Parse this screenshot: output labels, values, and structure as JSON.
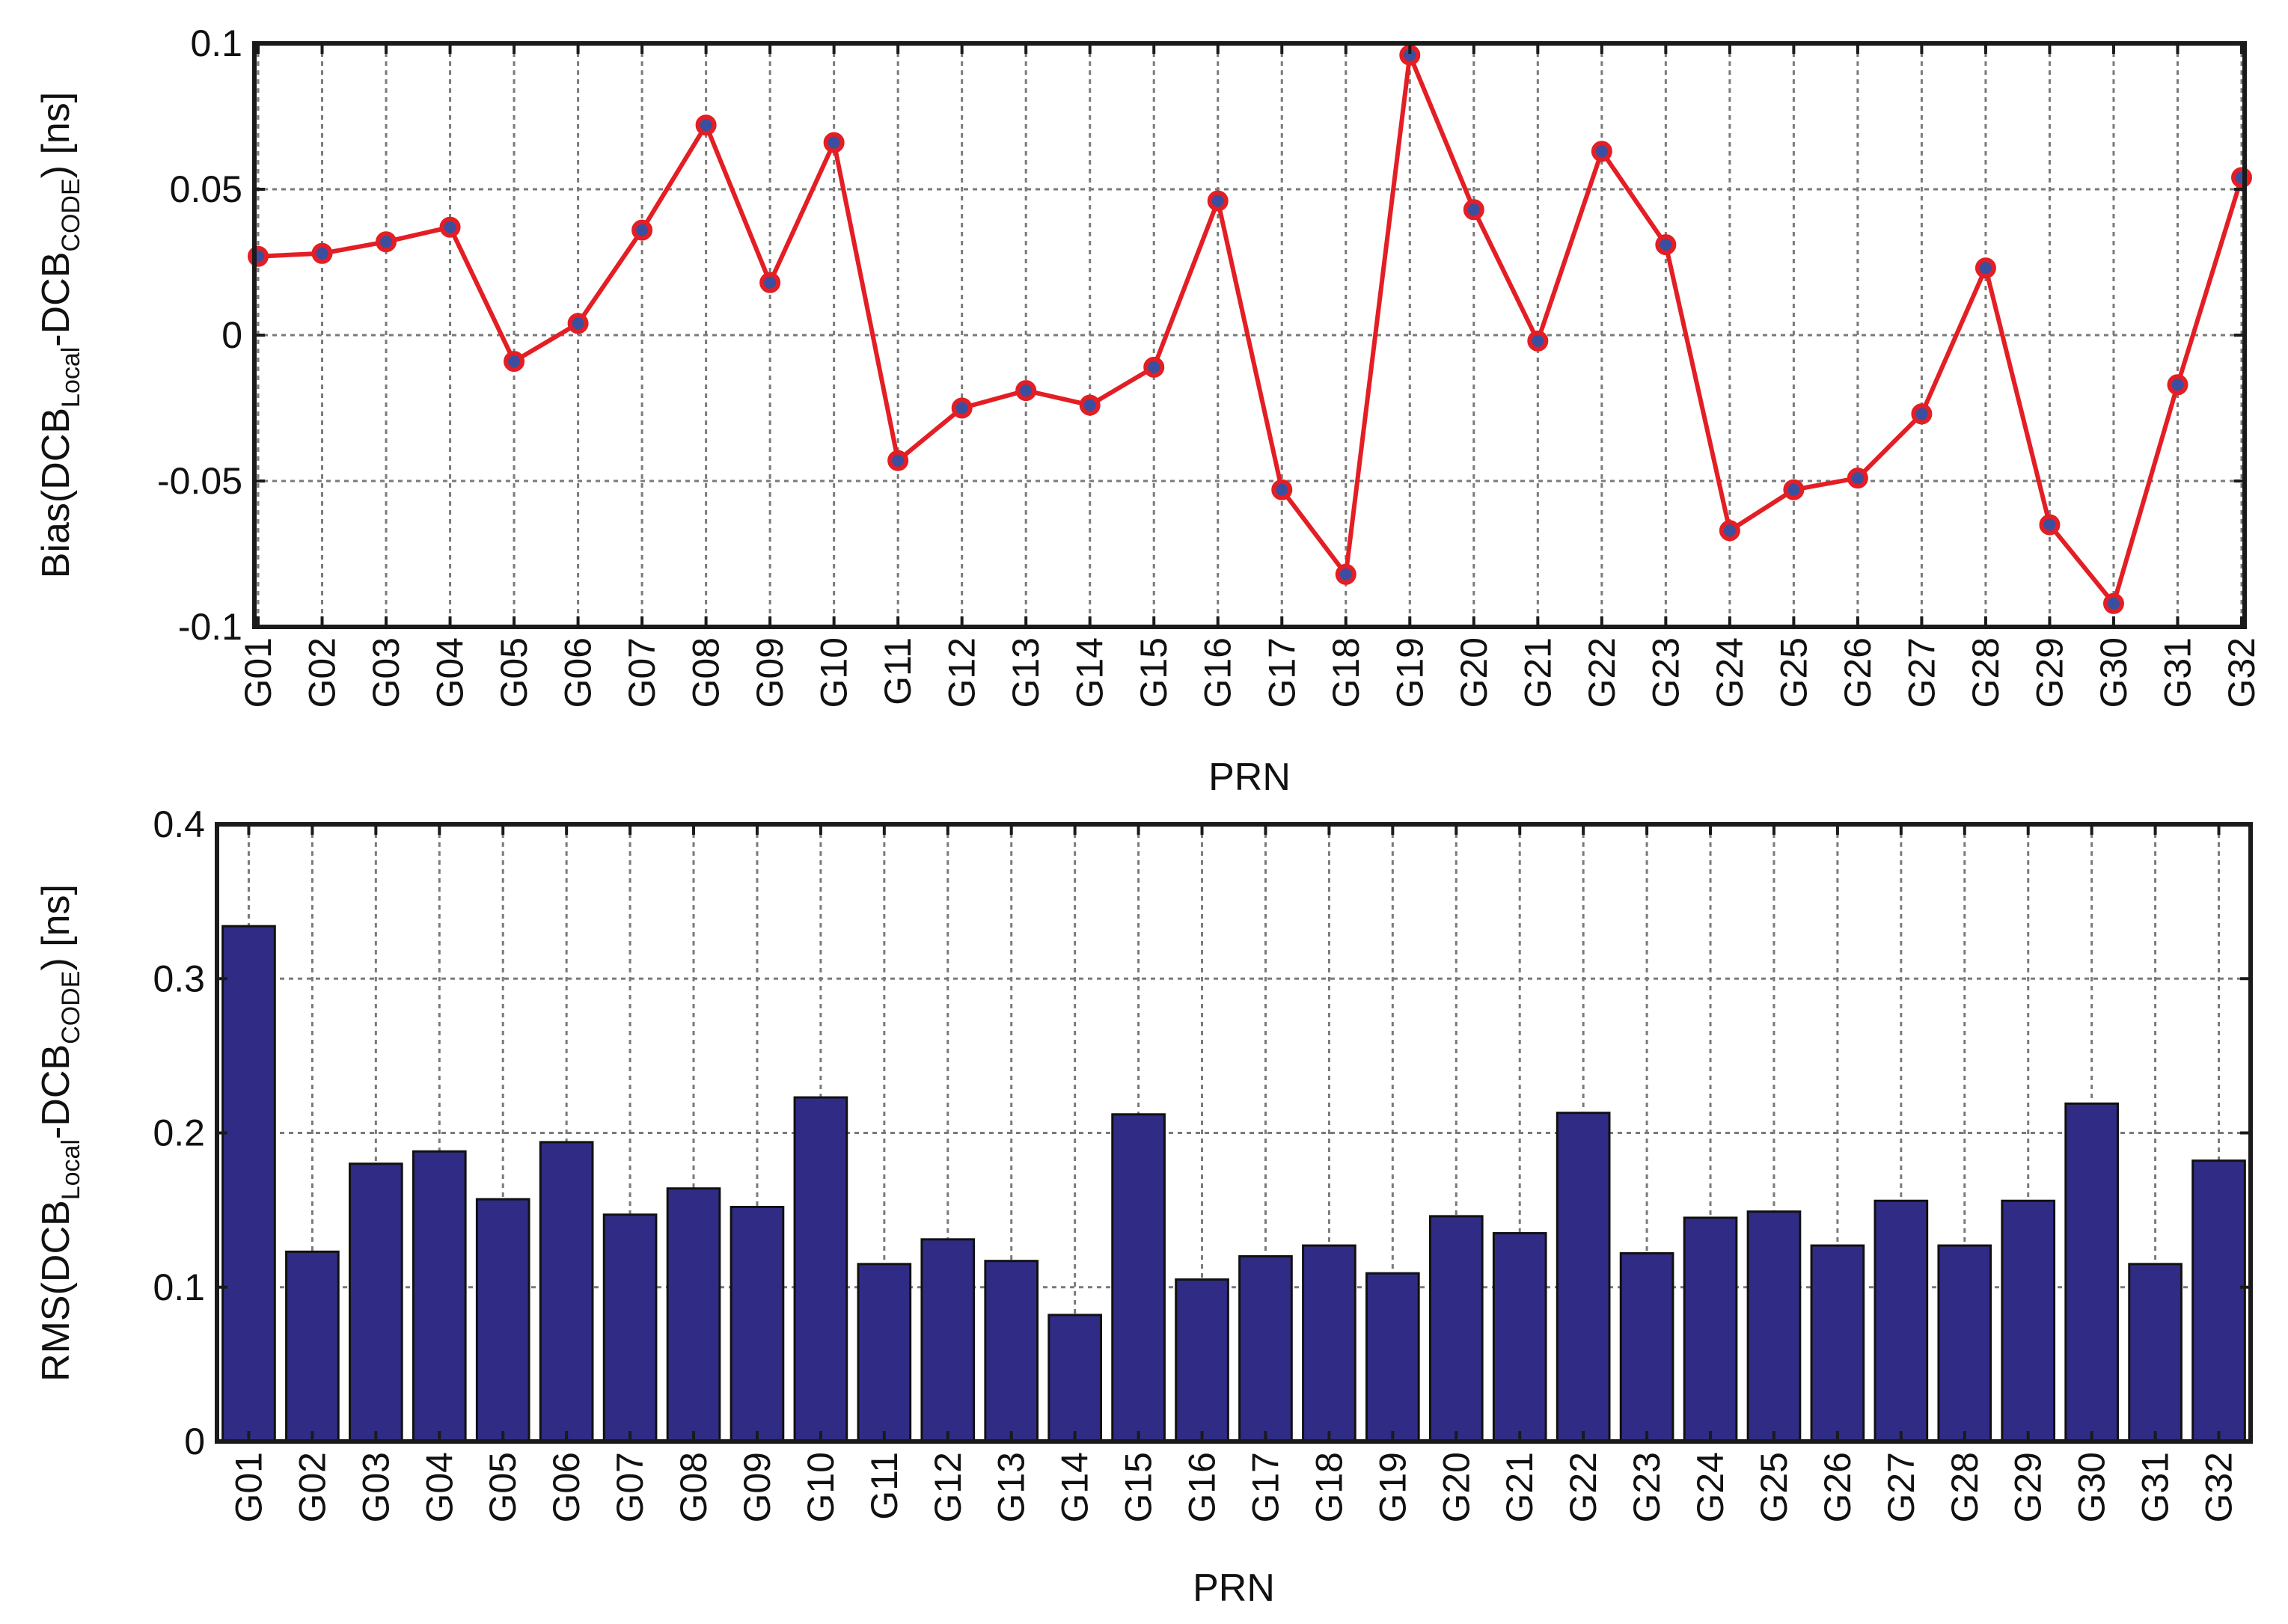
{
  "colors": {
    "line": "#e31e24",
    "marker_fill": "#3b4fa0",
    "bar": "#302c85",
    "bar_edge": "#111111",
    "grid": "#7a7a7a"
  },
  "chart_data": [
    {
      "type": "line",
      "xlabel": "PRN",
      "ylabel_parts": {
        "pre": "Bias(DCB",
        "sub1": "Local",
        "mid": "-DCB",
        "sub2": "CODE",
        "post": ") [ns]"
      },
      "ylim": [
        -0.1,
        0.1
      ],
      "yticks": [
        -0.1,
        -0.05,
        0,
        0.05,
        0.1
      ],
      "ytick_labels": [
        "-0.1",
        "-0.05",
        "0",
        "0.05",
        "0.1"
      ],
      "grid": true,
      "categories": [
        "G01",
        "G02",
        "G03",
        "G04",
        "G05",
        "G06",
        "G07",
        "G08",
        "G09",
        "G10",
        "G11",
        "G12",
        "G13",
        "G14",
        "G15",
        "G16",
        "G17",
        "G18",
        "G19",
        "G20",
        "G21",
        "G22",
        "G23",
        "G24",
        "G25",
        "G26",
        "G27",
        "G28",
        "G29",
        "G30",
        "G31",
        "G32"
      ],
      "values": [
        0.027,
        0.028,
        0.032,
        0.037,
        -0.009,
        0.004,
        0.036,
        0.072,
        0.018,
        0.066,
        -0.043,
        -0.025,
        -0.019,
        -0.024,
        -0.011,
        0.046,
        -0.053,
        -0.082,
        0.096,
        0.043,
        -0.002,
        0.063,
        0.031,
        -0.067,
        -0.053,
        -0.049,
        -0.027,
        0.023,
        -0.065,
        -0.092,
        -0.017,
        0.054
      ]
    },
    {
      "type": "bar",
      "xlabel": "PRN",
      "ylabel_parts": {
        "pre": "RMS(DCB",
        "sub1": "Local",
        "mid": "-DCB",
        "sub2": "CODE",
        "post": ") [ns]"
      },
      "ylim": [
        0,
        0.4
      ],
      "yticks": [
        0,
        0.1,
        0.2,
        0.3,
        0.4
      ],
      "ytick_labels": [
        "0",
        "0.1",
        "0.2",
        "0.3",
        "0.4"
      ],
      "grid": true,
      "categories": [
        "G01",
        "G02",
        "G03",
        "G04",
        "G05",
        "G06",
        "G07",
        "G08",
        "G09",
        "G10",
        "G11",
        "G12",
        "G13",
        "G14",
        "G15",
        "G16",
        "G17",
        "G18",
        "G19",
        "G20",
        "G21",
        "G22",
        "G23",
        "G24",
        "G25",
        "G26",
        "G27",
        "G28",
        "G29",
        "G30",
        "G31",
        "G32"
      ],
      "values": [
        0.334,
        0.123,
        0.18,
        0.188,
        0.157,
        0.194,
        0.147,
        0.164,
        0.152,
        0.223,
        0.115,
        0.131,
        0.117,
        0.082,
        0.212,
        0.105,
        0.12,
        0.127,
        0.109,
        0.146,
        0.135,
        0.213,
        0.122,
        0.145,
        0.149,
        0.127,
        0.156,
        0.127,
        0.156,
        0.219,
        0.115,
        0.182
      ]
    }
  ]
}
